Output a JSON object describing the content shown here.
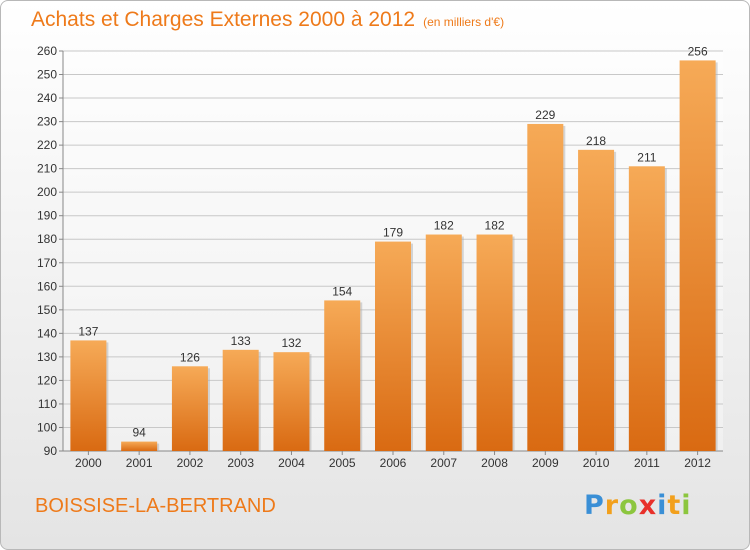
{
  "chart_data": {
    "type": "bar",
    "title": "Achats et Charges Externes 2000 à 2012",
    "subtitle": "(en milliers d'€)",
    "categories": [
      "2000",
      "2001",
      "2002",
      "2003",
      "2004",
      "2005",
      "2006",
      "2007",
      "2008",
      "2009",
      "2010",
      "2011",
      "2012"
    ],
    "values": [
      137,
      94,
      126,
      133,
      132,
      154,
      179,
      182,
      182,
      229,
      218,
      211,
      256
    ],
    "ylim": [
      90,
      260
    ],
    "yticks": [
      90,
      100,
      110,
      120,
      130,
      140,
      150,
      160,
      170,
      180,
      190,
      200,
      210,
      220,
      230,
      240,
      250,
      260
    ],
    "grid": true,
    "legend": "none",
    "bar_color": "#f09a40"
  },
  "footer": {
    "commune": "BOISSISE-LA-BERTRAND",
    "logo": {
      "letters": [
        "P",
        "r",
        "o",
        "x",
        "i",
        "t",
        "i"
      ],
      "colors": [
        "#3a8fd6",
        "#f2a01c",
        "#8cc63e",
        "#e8302a",
        "#3a8fd6",
        "#f2a01c",
        "#8cc63e"
      ]
    }
  }
}
